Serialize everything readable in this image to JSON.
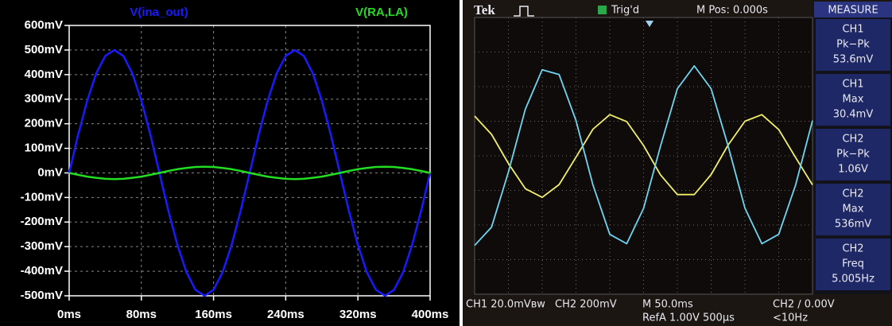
{
  "chart_data": [
    {
      "type": "line",
      "x": [
        0,
        10,
        20,
        30,
        40,
        50,
        60,
        70,
        80,
        90,
        100,
        110,
        120,
        130,
        140,
        150,
        160,
        170,
        180,
        190,
        200,
        210,
        220,
        230,
        240,
        250,
        260,
        270,
        280,
        290,
        300,
        310,
        320,
        330,
        340,
        350,
        360,
        370,
        380,
        390,
        400
      ],
      "series": [
        {
          "name": "V(ina_out)",
          "color": "#1a1aff",
          "values": [
            0,
            155,
            294,
            405,
            476,
            500,
            476,
            405,
            294,
            155,
            0,
            -155,
            -294,
            -405,
            -476,
            -500,
            -476,
            -405,
            -294,
            -155,
            0,
            155,
            294,
            405,
            476,
            500,
            476,
            405,
            294,
            155,
            0,
            -155,
            -294,
            -405,
            -476,
            -500,
            -476,
            -405,
            -294,
            -155,
            0
          ]
        },
        {
          "name": "V(RA,LA)",
          "color": "#22dd22",
          "values": [
            0,
            -8,
            -15,
            -20,
            -24,
            -25,
            -24,
            -20,
            -15,
            -8,
            0,
            8,
            15,
            20,
            24,
            25,
            24,
            20,
            15,
            8,
            0,
            -8,
            -15,
            -20,
            -24,
            -25,
            -24,
            -20,
            -15,
            -8,
            0,
            8,
            15,
            20,
            24,
            25,
            24,
            20,
            15,
            8,
            0
          ]
        }
      ],
      "xlim": [
        0,
        400
      ],
      "xticks": [
        {
          "value": 0,
          "label": "0ms"
        },
        {
          "value": 80,
          "label": "80ms"
        },
        {
          "value": 160,
          "label": "160ms"
        },
        {
          "value": 240,
          "label": "240ms"
        },
        {
          "value": 320,
          "label": "320ms"
        },
        {
          "value": 400,
          "label": "400ms"
        }
      ],
      "ylim": [
        -500,
        600
      ],
      "yticks": [
        {
          "value": 600,
          "label": "600mV"
        },
        {
          "value": 500,
          "label": "500mV"
        },
        {
          "value": 400,
          "label": "400mV"
        },
        {
          "value": 300,
          "label": "300mV"
        },
        {
          "value": 200,
          "label": "200mV"
        },
        {
          "value": 100,
          "label": "100mV"
        },
        {
          "value": 0,
          "label": "0mV"
        },
        {
          "value": -100,
          "label": "-100mV"
        },
        {
          "value": -200,
          "label": "-200mV"
        },
        {
          "value": -300,
          "label": "-300mV"
        },
        {
          "value": -400,
          "label": "-400mV"
        },
        {
          "value": -500,
          "label": "-500mV"
        }
      ],
      "grid": true
    },
    {
      "type": "line",
      "header": {
        "brand": "Tek",
        "status": "Trig'd",
        "position": "M Pos: 0.000s",
        "menu": "MEASURE"
      },
      "measurements": [
        {
          "channel": "CH1",
          "name": "Pk−Pk",
          "value": "53.6mV"
        },
        {
          "channel": "CH1",
          "name": "Max",
          "value": "30.4mV"
        },
        {
          "channel": "CH2",
          "name": "Pk−Pk",
          "value": "1.06V"
        },
        {
          "channel": "CH2",
          "name": "Max",
          "value": "536mV"
        },
        {
          "channel": "CH2",
          "name": "Freq",
          "value": "5.005Hz"
        }
      ],
      "footer": {
        "ch1": "CH1  20.0mVʙw",
        "ch2": "CH2  200mV",
        "timebase": "M 50.0ms",
        "ref": "RefA 1.00V 500µs",
        "trigger": "CH2 ∕ 0.00V",
        "freq": "<10Hz"
      },
      "x": [
        0,
        0.5,
        1,
        1.5,
        2,
        2.5,
        3,
        3.5,
        4,
        4.5,
        5,
        5.5,
        6,
        6.5,
        7,
        7.5,
        8,
        8.5,
        9,
        9.5,
        10
      ],
      "series": [
        {
          "color": "#f2ef6a",
          "values": [
            1.15,
            0.62,
            -0.22,
            -0.95,
            -1.2,
            -0.83,
            -0.04,
            0.77,
            1.19,
            0.99,
            0.3,
            -0.55,
            -1.12,
            -1.12,
            -0.54,
            0.31,
            1.0,
            1.19,
            0.76,
            -0.05,
            -0.84
          ]
        },
        {
          "color": "#6fd6f2",
          "values": [
            -2.59,
            -2.06,
            -0.47,
            1.35,
            2.49,
            2.35,
            1.02,
            -0.84,
            -2.27,
            -2.54,
            -1.52,
            0.28,
            1.94,
            2.6,
            1.94,
            0.29,
            -1.51,
            -2.54,
            -2.27,
            -0.84,
            1.02
          ]
        }
      ],
      "xlim": [
        0,
        10
      ],
      "xticks": [
        0,
        1,
        2,
        3,
        4,
        5,
        6,
        7,
        8,
        9,
        10
      ],
      "ylim": [
        -4,
        4
      ],
      "yticks": [
        -4,
        -3,
        -2,
        -1,
        0,
        1,
        2,
        3,
        4
      ],
      "grid": true
    }
  ]
}
